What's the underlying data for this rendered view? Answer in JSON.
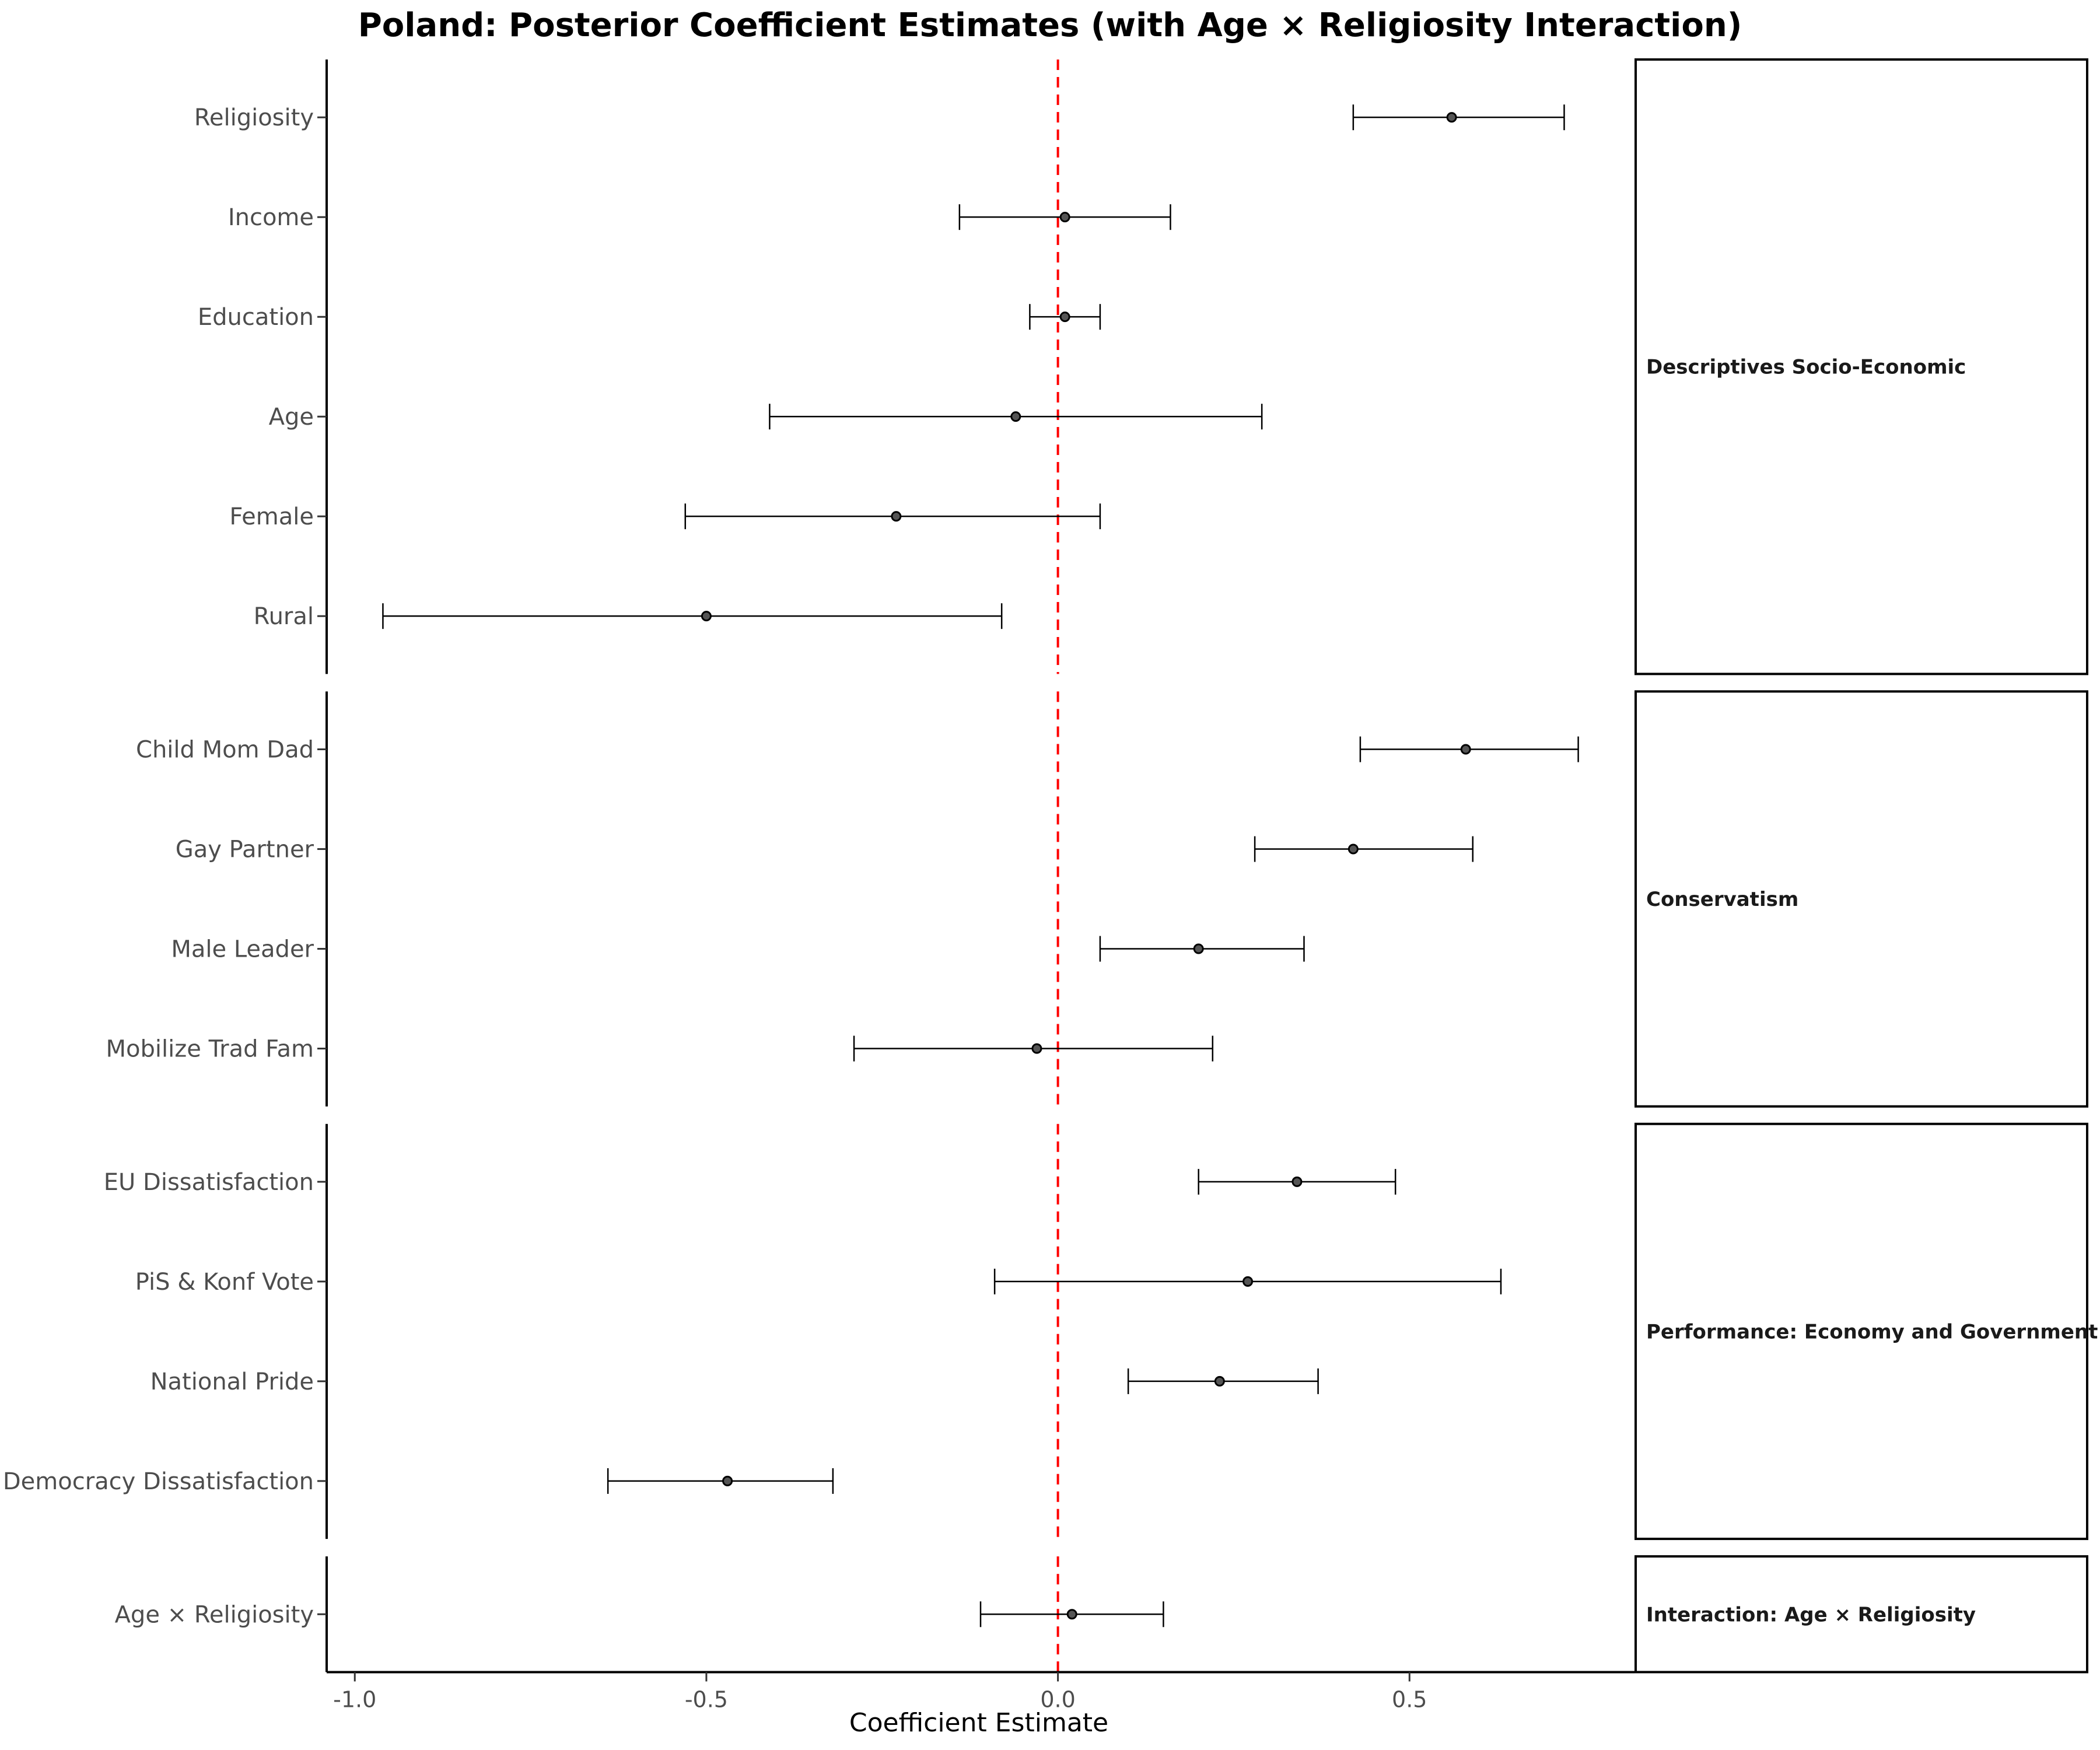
{
  "chart_data": {
    "type": "scatter",
    "title": "Poland: Posterior Coefficient Estimates (with Age × Religiosity Interaction)",
    "xlabel": "Coefficient Estimate",
    "ylabel": "",
    "xlim": [
      -1.04,
      0.82
    ],
    "x_ticks": [
      -1.0,
      -0.5,
      0.0,
      0.5
    ],
    "x_tick_labels": [
      "-1.0",
      "-0.5",
      "0.0",
      "0.5"
    ],
    "reference_line": {
      "x": 0,
      "style": "dashed",
      "color": "#ff0000"
    },
    "grid": false,
    "panels": [
      {
        "name": "Descriptives Socio-Economic",
        "items": [
          {
            "label": "Religiosity",
            "estimate": 0.56,
            "lower": 0.42,
            "upper": 0.72
          },
          {
            "label": "Income",
            "estimate": 0.01,
            "lower": -0.14,
            "upper": 0.16
          },
          {
            "label": "Education",
            "estimate": 0.01,
            "lower": -0.04,
            "upper": 0.06
          },
          {
            "label": "Age",
            "estimate": -0.06,
            "lower": -0.41,
            "upper": 0.29
          },
          {
            "label": "Female",
            "estimate": -0.23,
            "lower": -0.53,
            "upper": 0.06
          },
          {
            "label": "Rural",
            "estimate": -0.5,
            "lower": -0.96,
            "upper": -0.08
          }
        ]
      },
      {
        "name": "Conservatism",
        "items": [
          {
            "label": "Child Mom Dad",
            "estimate": 0.58,
            "lower": 0.43,
            "upper": 0.74
          },
          {
            "label": "Gay Partner",
            "estimate": 0.42,
            "lower": 0.28,
            "upper": 0.59
          },
          {
            "label": "Male Leader",
            "estimate": 0.2,
            "lower": 0.06,
            "upper": 0.35
          },
          {
            "label": "Mobilize Trad Fam",
            "estimate": -0.03,
            "lower": -0.29,
            "upper": 0.22
          }
        ]
      },
      {
        "name": "Performance: Economy and Government",
        "items": [
          {
            "label": "EU Dissatisfaction",
            "estimate": 0.34,
            "lower": 0.2,
            "upper": 0.48
          },
          {
            "label": "PiS & Konf Vote",
            "estimate": 0.27,
            "lower": -0.09,
            "upper": 0.63
          },
          {
            "label": "National Pride",
            "estimate": 0.23,
            "lower": 0.1,
            "upper": 0.37
          },
          {
            "label": "Democracy Dissatisfaction",
            "estimate": -0.47,
            "lower": -0.64,
            "upper": -0.32
          }
        ]
      },
      {
        "name": "Interaction: Age × Religiosity",
        "items": [
          {
            "label": "Age × Religiosity",
            "estimate": 0.02,
            "lower": -0.11,
            "upper": 0.15
          }
        ]
      }
    ],
    "colors": {
      "marks": "#000000",
      "reference": "#ff0000",
      "axis_text": "#4d4d4d"
    }
  }
}
